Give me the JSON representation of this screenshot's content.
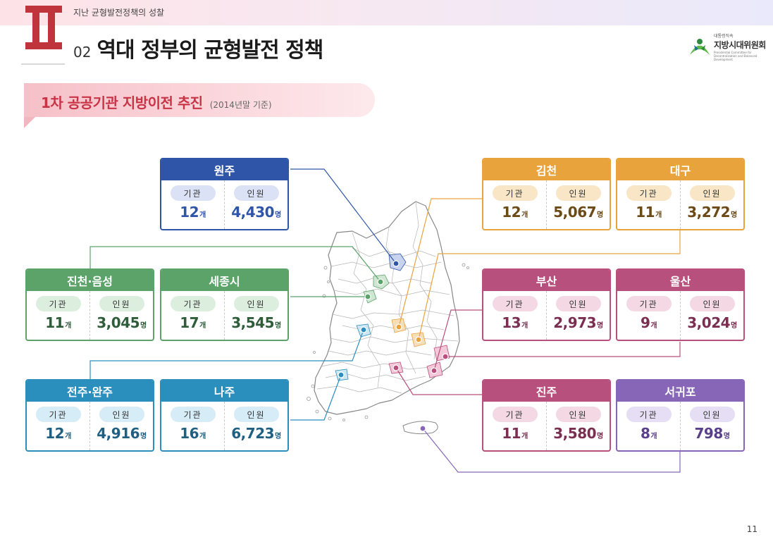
{
  "header": {
    "section_label": "지난 균형발전정책의 성찰",
    "roman_numeral": "II",
    "title_number": "02",
    "title": "역대 정부의 균형발전 정책"
  },
  "logo": {
    "small_text": "대통령직속",
    "name": "지방시대위원회",
    "english": "Presidential Committee for Decentralization and Balanced Development"
  },
  "subtitle": {
    "main": "1차 공공기관 지방이전 추진",
    "note": "(2014년말 기준)"
  },
  "labels": {
    "institutions": "기관",
    "staff": "인원",
    "count_unit": "개",
    "people_unit": "명"
  },
  "colors": {
    "blue": "#2f55a8",
    "orange": "#e9a33d",
    "green": "#5ca36a",
    "magenta": "#b8507d",
    "cyan": "#2b8fbe",
    "purple": "#8766b8"
  },
  "regions": [
    {
      "name": "원주",
      "institutions": "12",
      "staff": "4,430",
      "theme": "blue"
    },
    {
      "name": "김천",
      "institutions": "12",
      "staff": "5,067",
      "theme": "orange"
    },
    {
      "name": "대구",
      "institutions": "11",
      "staff": "3,272",
      "theme": "orange"
    },
    {
      "name": "진천·음성",
      "institutions": "11",
      "staff": "3,045",
      "theme": "green"
    },
    {
      "name": "세종시",
      "institutions": "17",
      "staff": "3,545",
      "theme": "green"
    },
    {
      "name": "부산",
      "institutions": "13",
      "staff": "2,973",
      "theme": "magenta"
    },
    {
      "name": "울산",
      "institutions": "9",
      "staff": "3,024",
      "theme": "magenta"
    },
    {
      "name": "전주·완주",
      "institutions": "12",
      "staff": "4,916",
      "theme": "cyan"
    },
    {
      "name": "나주",
      "institutions": "16",
      "staff": "6,723",
      "theme": "cyan"
    },
    {
      "name": "진주",
      "institutions": "11",
      "staff": "3,580",
      "theme": "magenta"
    },
    {
      "name": "서귀포",
      "institutions": "8",
      "staff": "798",
      "theme": "purple"
    }
  ],
  "page_number": "11"
}
